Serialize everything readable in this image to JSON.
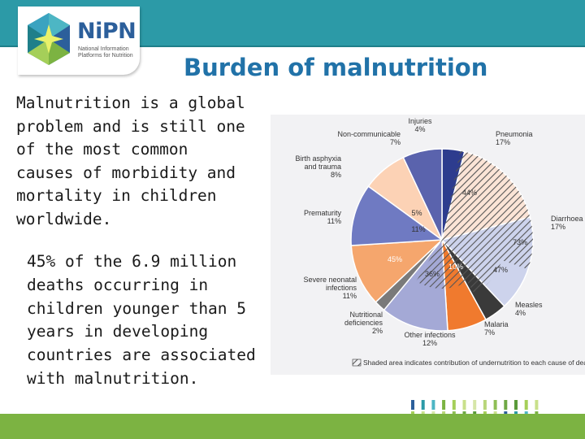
{
  "logo": {
    "word": "NiPN",
    "subtitle": "National Information Platforms for Nutrition"
  },
  "title": "Burden of malnutrition",
  "paragraph1": "Malnutrition is a global\nproblem and is still one\nof the most common\ncauses of morbidity and\nmortality in children\nworldwide.",
  "paragraph2": "45% of the 6.9 million\ndeaths occurring in\nchildren younger than 5\nyears in developing\ncountries are associated\nwith malnutrition.",
  "colors": {
    "brand_teal": "#2c9aa7",
    "title_blue": "#2172a8",
    "bottom_green": "#7cb342"
  },
  "chart_data": {
    "type": "pie",
    "title": "",
    "slices": [
      {
        "label": "Injuries",
        "value": 4,
        "color": "#2d3c8e",
        "value_text": "4%"
      },
      {
        "label": "Pneumonia",
        "value": 17,
        "color": "#fbe4d6",
        "value_text": "17%"
      },
      {
        "label": "Diarrhoea",
        "value": 17,
        "color": "#cdd3ec",
        "value_text": "17%"
      },
      {
        "label": "Measles",
        "value": 4,
        "color": "#3a3a3a",
        "value_text": "4%"
      },
      {
        "label": "Malaria",
        "value": 7,
        "color": "#f07a2e",
        "value_text": "7%"
      },
      {
        "label": "Other infections",
        "value": 12,
        "color": "#a4a9d6",
        "value_text": "12%"
      },
      {
        "label": "Nutritional deficiencies",
        "value": 2,
        "color": "#7a7a7a",
        "value_text": "2%"
      },
      {
        "label": "Severe neonatal infections",
        "value": 11,
        "color": "#f5a66d",
        "value_text": "11%"
      },
      {
        "label": "Prematurity",
        "value": 11,
        "color": "#6f7ac2",
        "value_text": "11%"
      },
      {
        "label": "Birth asphyxia and trauma",
        "value": 8,
        "color": "#fcd2b5",
        "value_text": "8%"
      },
      {
        "label": "Non-communicable",
        "value": 7,
        "color": "#5a63ad",
        "value_text": "7%"
      }
    ],
    "inner_labels": [
      "44%",
      "73%",
      "47%",
      "10%",
      "36%",
      "45%",
      "11%",
      "5%"
    ],
    "legend_note": "Shaded area indicates contribution of undernutrition to each cause of death"
  }
}
